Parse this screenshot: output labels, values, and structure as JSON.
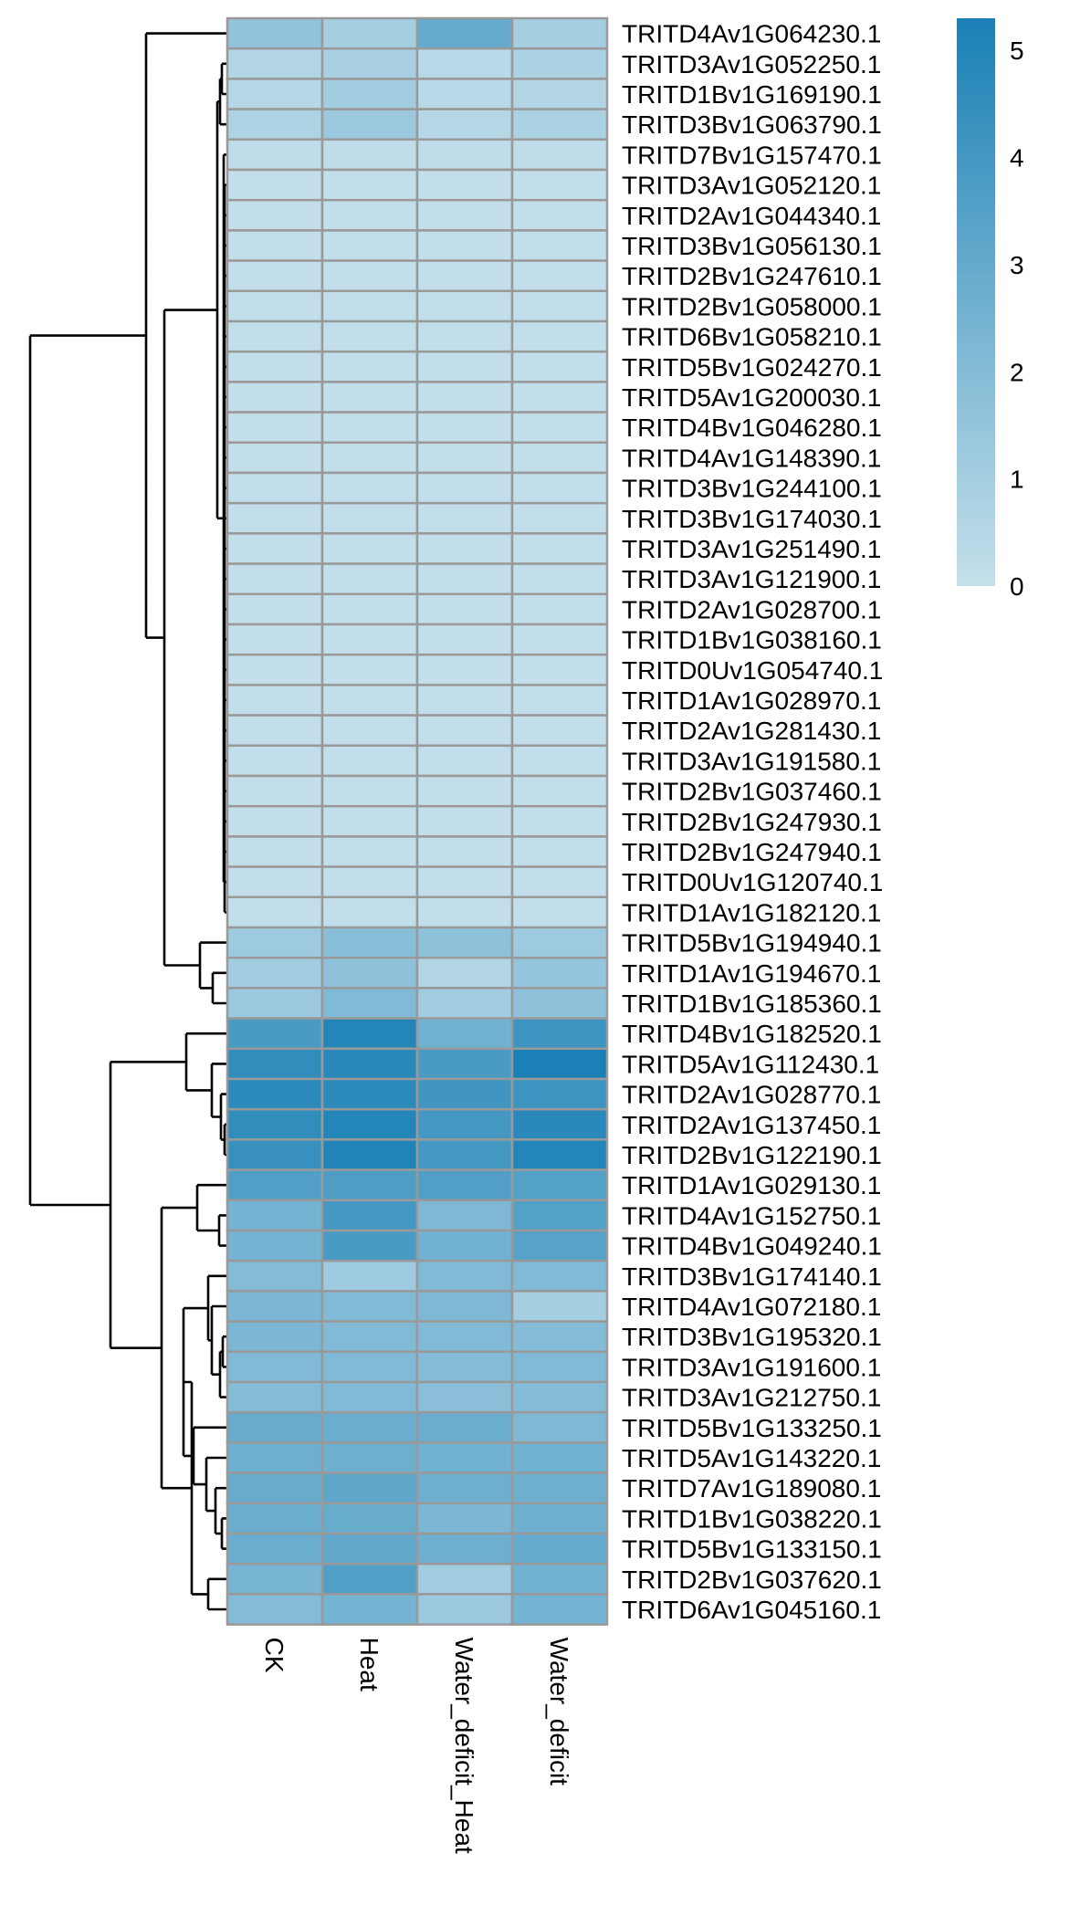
{
  "chart_data": {
    "type": "heatmap",
    "title": "",
    "xlabel": "",
    "ylabel": "",
    "columns": [
      "CK",
      "Heat",
      "Water_deficit_Heat",
      "Water_deficit"
    ],
    "rows": [
      "TRITD4Av1G064230.1",
      "TRITD3Av1G052250.1",
      "TRITD1Bv1G169190.1",
      "TRITD3Bv1G063790.1",
      "TRITD7Bv1G157470.1",
      "TRITD3Av1G052120.1",
      "TRITD2Av1G044340.1",
      "TRITD3Bv1G056130.1",
      "TRITD2Bv1G247610.1",
      "TRITD2Bv1G058000.1",
      "TRITD6Bv1G058210.1",
      "TRITD5Bv1G024270.1",
      "TRITD5Av1G200030.1",
      "TRITD4Bv1G046280.1",
      "TRITD4Av1G148390.1",
      "TRITD3Bv1G244100.1",
      "TRITD3Bv1G174030.1",
      "TRITD3Av1G251490.1",
      "TRITD3Av1G121900.1",
      "TRITD2Av1G028700.1",
      "TRITD1Bv1G038160.1",
      "TRITD0Uv1G054740.1",
      "TRITD1Av1G028970.1",
      "TRITD2Av1G281430.1",
      "TRITD3Av1G191580.1",
      "TRITD2Bv1G037460.1",
      "TRITD2Bv1G247930.1",
      "TRITD2Bv1G247940.1",
      "TRITD0Uv1G120740.1",
      "TRITD1Av1G182120.1",
      "TRITD5Bv1G194940.1",
      "TRITD1Av1G194670.1",
      "TRITD1Bv1G185360.1",
      "TRITD4Bv1G182520.1",
      "TRITD5Av1G112430.1",
      "TRITD2Av1G028770.1",
      "TRITD2Av1G137450.1",
      "TRITD2Bv1G122190.1",
      "TRITD1Av1G029130.1",
      "TRITD4Av1G152750.1",
      "TRITD4Bv1G049240.1",
      "TRITD3Bv1G174140.1",
      "TRITD4Av1G072180.1",
      "TRITD3Bv1G195320.1",
      "TRITD3Av1G191600.1",
      "TRITD3Av1G212750.1",
      "TRITD5Bv1G133250.1",
      "TRITD5Av1G143220.1",
      "TRITD7Av1G189080.1",
      "TRITD1Bv1G038220.1",
      "TRITD5Bv1G133150.1",
      "TRITD2Bv1G037620.1",
      "TRITD6Av1G045160.1"
    ],
    "values": [
      [
        1.6,
        1.0,
        3.0,
        1.0
      ],
      [
        0.6,
        0.9,
        0.4,
        0.8
      ],
      [
        0.5,
        1.1,
        0.4,
        0.6
      ],
      [
        0.7,
        1.3,
        0.5,
        0.8
      ],
      [
        0.2,
        0.2,
        0.2,
        0.2
      ],
      [
        0.1,
        0.1,
        0.1,
        0.1
      ],
      [
        0.1,
        0.1,
        0.1,
        0.1
      ],
      [
        0.1,
        0.1,
        0.1,
        0.1
      ],
      [
        0.1,
        0.1,
        0.1,
        0.1
      ],
      [
        0.1,
        0.1,
        0.1,
        0.1
      ],
      [
        0.1,
        0.1,
        0.1,
        0.1
      ],
      [
        0.1,
        0.1,
        0.1,
        0.1
      ],
      [
        0.1,
        0.1,
        0.1,
        0.1
      ],
      [
        0.1,
        0.1,
        0.1,
        0.1
      ],
      [
        0.1,
        0.1,
        0.1,
        0.1
      ],
      [
        0.1,
        0.1,
        0.1,
        0.1
      ],
      [
        0.1,
        0.1,
        0.1,
        0.1
      ],
      [
        0.1,
        0.1,
        0.1,
        0.1
      ],
      [
        0.1,
        0.1,
        0.1,
        0.1
      ],
      [
        0.1,
        0.1,
        0.1,
        0.1
      ],
      [
        0.1,
        0.1,
        0.1,
        0.1
      ],
      [
        0.1,
        0.1,
        0.1,
        0.1
      ],
      [
        0.1,
        0.1,
        0.1,
        0.1
      ],
      [
        0.1,
        0.1,
        0.1,
        0.1
      ],
      [
        0.1,
        0.1,
        0.1,
        0.1
      ],
      [
        0.1,
        0.1,
        0.1,
        0.1
      ],
      [
        0.1,
        0.1,
        0.1,
        0.1
      ],
      [
        0.1,
        0.1,
        0.1,
        0.1
      ],
      [
        0.1,
        0.1,
        0.1,
        0.1
      ],
      [
        0.1,
        0.1,
        0.1,
        0.1
      ],
      [
        1.2,
        1.9,
        1.7,
        1.2
      ],
      [
        1.1,
        1.7,
        0.6,
        1.5
      ],
      [
        1.3,
        2.1,
        1.1,
        1.7
      ],
      [
        3.8,
        5.0,
        2.6,
        4.2
      ],
      [
        4.6,
        4.8,
        3.8,
        5.3
      ],
      [
        4.7,
        4.7,
        4.1,
        4.2
      ],
      [
        4.6,
        5.0,
        4.0,
        4.8
      ],
      [
        4.4,
        5.1,
        4.0,
        5.0
      ],
      [
        3.6,
        3.7,
        3.6,
        3.5
      ],
      [
        2.5,
        4.0,
        2.2,
        3.5
      ],
      [
        2.5,
        3.8,
        2.6,
        3.4
      ],
      [
        2.0,
        1.2,
        2.1,
        2.1
      ],
      [
        2.3,
        2.1,
        2.2,
        1.0
      ],
      [
        2.3,
        2.1,
        2.1,
        2.0
      ],
      [
        2.1,
        2.1,
        2.0,
        2.1
      ],
      [
        2.0,
        2.1,
        1.8,
        2.0
      ],
      [
        2.9,
        2.8,
        2.8,
        2.2
      ],
      [
        2.7,
        2.7,
        2.6,
        2.6
      ],
      [
        2.9,
        3.2,
        2.7,
        2.7
      ],
      [
        2.8,
        2.9,
        2.3,
        2.7
      ],
      [
        2.8,
        3.1,
        2.7,
        3.0
      ],
      [
        2.4,
        3.6,
        1.1,
        2.6
      ],
      [
        2.0,
        2.5,
        1.3,
        2.5
      ]
    ],
    "color_scale": {
      "min": 0,
      "max": 5.3,
      "low_color": "#c5e0eb",
      "high_color": "#1a80b5",
      "ticks": [
        0,
        1,
        2,
        3,
        4,
        5
      ]
    },
    "row_dendrogram": true,
    "column_dendrogram": false,
    "legend_position": "top-right"
  }
}
